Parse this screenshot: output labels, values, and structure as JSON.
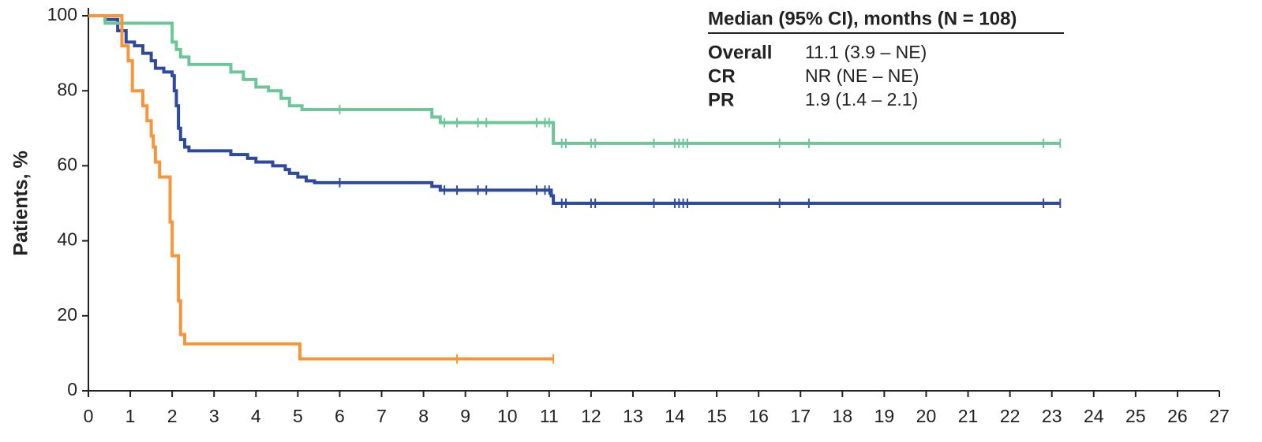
{
  "chart_data": {
    "type": "step",
    "y_label": "Patients, %",
    "legend_title": "Median (95% CI), months (N = 108)",
    "xlim": [
      0,
      27
    ],
    "ylim": [
      0,
      100
    ],
    "xticks": [
      0,
      1,
      2,
      3,
      4,
      5,
      6,
      7,
      8,
      9,
      10,
      11,
      12,
      13,
      14,
      15,
      16,
      17,
      18,
      19,
      20,
      21,
      22,
      23,
      24,
      25,
      26,
      27
    ],
    "yticks": [
      0,
      20,
      40,
      60,
      80,
      100
    ],
    "series": [
      {
        "name": "Overall",
        "median_label": "11.1 (3.9 – NE)",
        "color": "#2e4a9e",
        "x": [
          0,
          0.4,
          0.7,
          0.9,
          1.1,
          1.3,
          1.5,
          1.6,
          1.8,
          2.0,
          2.05,
          2.1,
          2.15,
          2.2,
          2.3,
          2.4,
          3.4,
          3.8,
          4.0,
          4.4,
          4.7,
          4.8,
          5.0,
          5.2,
          5.4,
          8.2,
          8.4,
          11.05,
          11.1,
          23.2
        ],
        "values": [
          100,
          99,
          96,
          93,
          92,
          90,
          88,
          86,
          85,
          84,
          80,
          76,
          70,
          67,
          65,
          64,
          63,
          62,
          61,
          60,
          59,
          58,
          57,
          56,
          55.5,
          54.5,
          53.5,
          52,
          50,
          50
        ],
        "censor_x": [
          6.0,
          8.5,
          8.8,
          9.3,
          9.5,
          10.7,
          10.9,
          11.0,
          11.3,
          11.4,
          12.0,
          12.1,
          13.5,
          14.0,
          14.1,
          14.2,
          14.3,
          16.5,
          17.2,
          22.8,
          23.2
        ]
      },
      {
        "name": "CR",
        "median_label": "NR (NE – NE)",
        "color": "#6cc69a",
        "x": [
          0,
          0.4,
          2.0,
          2.1,
          2.2,
          2.4,
          3.4,
          3.7,
          4.0,
          4.3,
          4.6,
          4.8,
          5.1,
          8.2,
          8.4,
          11.1,
          23.2
        ],
        "values": [
          100,
          98,
          93,
          91,
          89,
          87,
          85,
          83,
          81,
          80,
          78,
          76,
          75,
          73,
          71.5,
          66,
          66
        ],
        "censor_x": [
          6.0,
          8.5,
          8.8,
          9.3,
          9.5,
          10.7,
          10.9,
          11.0,
          11.3,
          11.4,
          12.0,
          12.1,
          13.5,
          14.0,
          14.1,
          14.2,
          14.3,
          16.5,
          17.2,
          22.8,
          23.2
        ]
      },
      {
        "name": "PR",
        "median_label": "1.9 (1.4 – 2.1)",
        "color": "#f7953a",
        "x": [
          0,
          0.8,
          0.95,
          1.05,
          1.3,
          1.4,
          1.5,
          1.55,
          1.6,
          1.7,
          1.95,
          2.0,
          2.15,
          2.2,
          2.3,
          5.05,
          11.1
        ],
        "values": [
          100,
          92,
          88,
          80,
          76,
          72,
          68,
          65,
          61,
          57,
          45,
          36,
          24,
          15,
          12.5,
          8.5,
          8.5
        ],
        "censor_x": [
          8.8,
          11.1
        ]
      }
    ]
  }
}
